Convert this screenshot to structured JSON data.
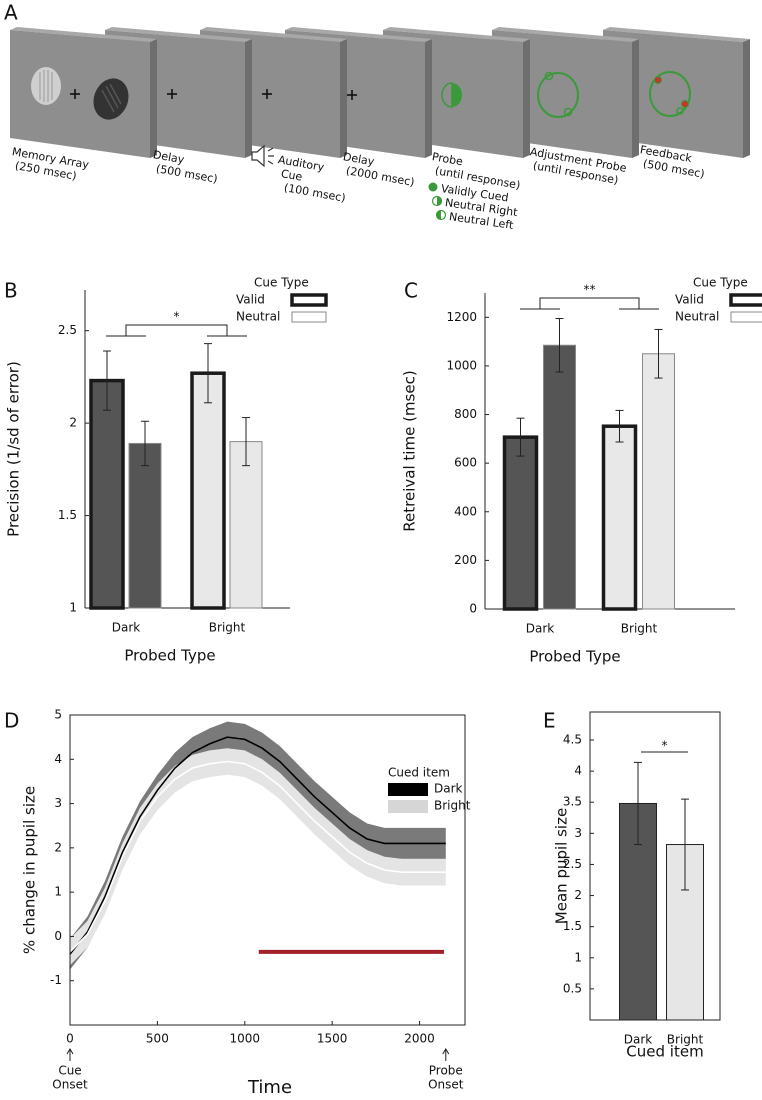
{
  "panels": [
    "A",
    "B",
    "C",
    "D",
    "E"
  ],
  "trial_sequence": [
    {
      "lines": [
        "Memory Array",
        "(250 msec)"
      ]
    },
    {
      "lines": [
        "Delay",
        "(500 msec)"
      ]
    },
    {
      "lines": [
        "Auditory",
        "Cue",
        "(100 msec)"
      ]
    },
    {
      "lines": [
        "Delay",
        "(2000 msec)"
      ]
    },
    {
      "lines": [
        "Probe",
        "(until response)"
      ]
    },
    {
      "lines": [
        "Adjustment Probe",
        "(until response)"
      ]
    },
    {
      "lines": [
        "Feedback",
        "(500 msec)"
      ]
    }
  ],
  "probe_legend": [
    "Validly Cued",
    "Neutral Right",
    "Neutral Left"
  ],
  "chart_data": [
    {
      "type": "bar",
      "ylabel": "Precision (1/sd of error)",
      "xlabel": "Probed Type",
      "categories": [
        "Dark",
        "Bright"
      ],
      "category_colors": [
        "#555555",
        "#e8e8e8"
      ],
      "legend_title": "Cue Type",
      "series": [
        {
          "name": "Valid",
          "color": "#1a1a1a",
          "edge_width": 3.5,
          "values": [
            2.23,
            2.27
          ],
          "errors": [
            0.16,
            0.16
          ]
        },
        {
          "name": "Neutral",
          "color": "#888888",
          "edge_width": 1,
          "values": [
            1.89,
            1.9
          ],
          "errors": [
            0.12,
            0.13
          ]
        }
      ],
      "ylim": [
        1,
        2.72
      ],
      "yticks": [
        1,
        1.5,
        2,
        2.5
      ],
      "significance": "*"
    },
    {
      "type": "bar",
      "ylabel": "Retreival time (msec)",
      "xlabel": "Probed Type",
      "categories": [
        "Dark",
        "Bright"
      ],
      "category_colors": [
        "#555555",
        "#e8e8e8"
      ],
      "legend_title": "Cue Type",
      "series": [
        {
          "name": "Valid",
          "color": "#1a1a1a",
          "edge_width": 3.5,
          "values": [
            707,
            752
          ],
          "errors": [
            78,
            65
          ]
        },
        {
          "name": "Neutral",
          "color": "#888888",
          "edge_width": 1,
          "values": [
            1085,
            1050
          ],
          "errors": [
            110,
            100
          ]
        }
      ],
      "ylim": [
        0,
        1300
      ],
      "yticks": [
        0,
        200,
        400,
        600,
        800,
        1000,
        1200
      ],
      "significance": "**"
    },
    {
      "type": "line",
      "ylabel": "% change in pupil size",
      "xlabel": "Time",
      "legend_title": "Cued item",
      "x": [
        0,
        100,
        200,
        300,
        400,
        500,
        600,
        700,
        800,
        900,
        1000,
        1100,
        1200,
        1300,
        1400,
        1500,
        1600,
        1700,
        1800,
        1900,
        2000,
        2100,
        2150
      ],
      "series": [
        {
          "name": "Dark",
          "color": "#000000",
          "band_color": "#7a7a7a",
          "legend_color": "#000000",
          "error": 0.35,
          "values": [
            -0.4,
            0.1,
            0.9,
            1.9,
            2.7,
            3.3,
            3.8,
            4.15,
            4.35,
            4.5,
            4.45,
            4.25,
            3.95,
            3.55,
            3.15,
            2.8,
            2.45,
            2.2,
            2.1,
            2.1,
            2.1,
            2.1,
            2.1
          ]
        },
        {
          "name": "Bright",
          "color": "#ffffff",
          "band_color": "#e4e4e4",
          "legend_color": "#d6d6d6",
          "error": 0.3,
          "values": [
            -0.35,
            0.05,
            0.8,
            1.8,
            2.6,
            3.15,
            3.55,
            3.8,
            3.9,
            3.95,
            3.9,
            3.7,
            3.4,
            3.0,
            2.6,
            2.25,
            1.9,
            1.65,
            1.5,
            1.45,
            1.45,
            1.45,
            1.45
          ]
        }
      ],
      "significance_bar": {
        "x": [
          1080,
          2140
        ],
        "y": -0.35,
        "color": "#a3202a"
      },
      "annotations": [
        {
          "x": 0,
          "lines": [
            "Cue",
            "Onset"
          ]
        },
        {
          "x": 2150,
          "lines": [
            "Probe",
            "Onset"
          ]
        }
      ],
      "xlim": [
        0,
        2260
      ],
      "xticks": [
        0,
        500,
        1000,
        1500,
        2000
      ],
      "ylim": [
        -2,
        5
      ],
      "yticks": [
        -1,
        0,
        1,
        2,
        3,
        4,
        5
      ]
    },
    {
      "type": "bar",
      "ylabel": "Mean pupil size",
      "xlabel": "Cued item",
      "categories": [
        "Dark",
        "Bright"
      ],
      "colors": [
        "#555555",
        "#e6e6e6"
      ],
      "values": [
        3.48,
        2.82
      ],
      "errors": [
        0.66,
        0.73
      ],
      "ylim": [
        0,
        4.95
      ],
      "yticks": [
        0.5,
        1,
        1.5,
        2,
        2.5,
        3,
        3.5,
        4,
        4.5
      ],
      "significance": "*"
    }
  ]
}
